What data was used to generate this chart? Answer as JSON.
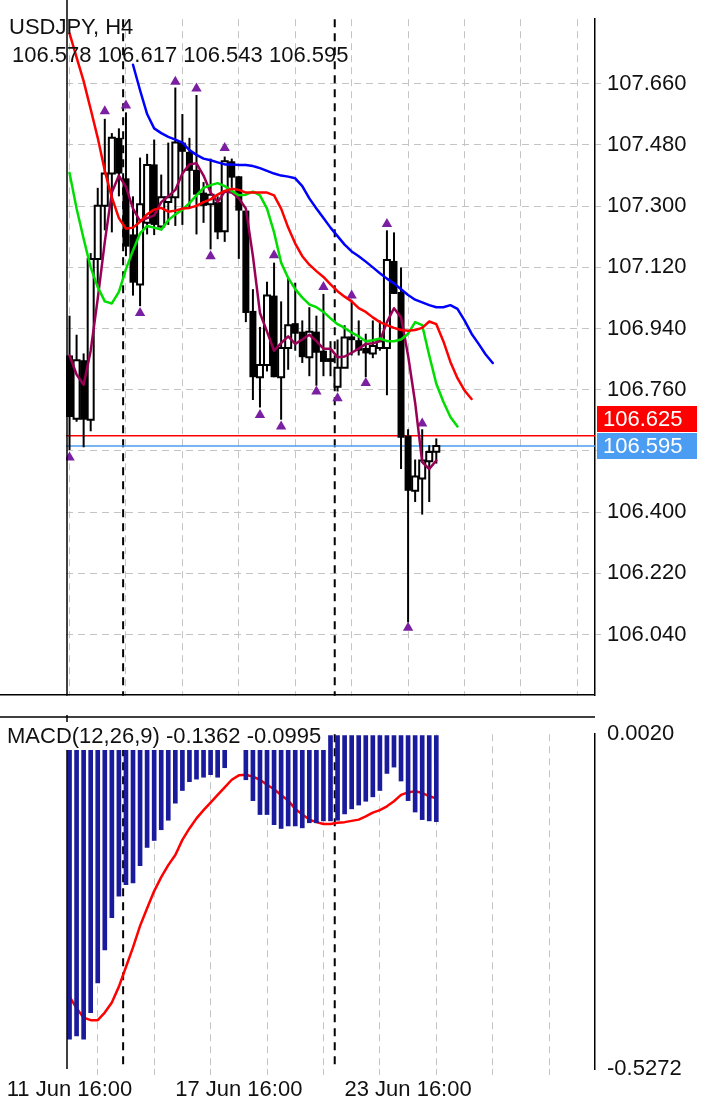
{
  "chart_data": [
    {
      "type": "candlestick",
      "title": "USDJPY, H4",
      "subtitle": "106.578 106.617 106.543 106.595",
      "categories": [
        null,
        null,
        null,
        null,
        null,
        null,
        null,
        null,
        null,
        null,
        null,
        null,
        null,
        null,
        null,
        null,
        null,
        null,
        null,
        null,
        null,
        null,
        null,
        null,
        null,
        null,
        null,
        null,
        null,
        null,
        null,
        null,
        null,
        null,
        null,
        null,
        null,
        null,
        null,
        null,
        null,
        null,
        null,
        null,
        null,
        null,
        null,
        null,
        null,
        null,
        null,
        null,
        null,
        null,
        null,
        null,
        null,
        null,
        null,
        null,
        null,
        null,
        null,
        null,
        null,
        null,
        null,
        null,
        null,
        null,
        null,
        null,
        null,
        null,
        null
      ],
      "ohlc": [
        [
          106.861,
          106.978,
          106.583,
          106.68
        ],
        [
          106.675,
          106.922,
          106.666,
          106.847
        ],
        [
          106.847,
          106.867,
          106.591,
          106.672
        ],
        [
          106.672,
          107.162,
          106.638,
          107.145
        ],
        [
          107.145,
          107.354,
          107.07,
          107.301
        ],
        [
          107.301,
          107.557,
          107.229,
          107.396
        ],
        [
          107.396,
          107.515,
          107.223,
          107.501
        ],
        [
          107.501,
          107.529,
          107.329,
          107.396
        ],
        [
          107.382,
          107.576,
          107.153,
          107.181
        ],
        [
          107.217,
          107.329,
          107.037,
          107.075
        ],
        [
          107.07,
          107.443,
          107.006,
          107.306
        ],
        [
          107.251,
          107.454,
          107.217,
          107.421
        ],
        [
          107.423,
          107.496,
          107.215,
          107.245
        ],
        [
          107.24,
          107.393,
          107.237,
          107.326
        ],
        [
          107.312,
          107.487,
          107.245,
          107.326
        ],
        [
          107.326,
          107.649,
          107.242,
          107.487
        ],
        [
          107.487,
          107.571,
          107.245,
          107.46
        ],
        [
          107.46,
          107.501,
          107.293,
          107.404
        ],
        [
          107.407,
          107.627,
          107.217,
          107.334
        ],
        [
          107.34,
          107.371,
          107.251,
          107.301
        ],
        [
          107.306,
          107.44,
          107.173,
          107.334
        ],
        [
          107.312,
          107.329,
          107.203,
          107.223
        ],
        [
          107.226,
          107.446,
          107.195,
          107.432
        ],
        [
          107.432,
          107.44,
          107.354,
          107.384
        ],
        [
          107.388,
          107.388,
          107.145,
          107.287
        ],
        [
          107.287,
          107.287,
          106.959,
          106.986
        ],
        [
          106.992,
          107.056,
          106.73,
          106.797
        ],
        [
          106.797,
          106.945,
          106.708,
          106.833
        ],
        [
          106.833,
          107.078,
          106.814,
          107.037
        ],
        [
          107.037,
          107.134,
          106.797,
          106.797
        ],
        [
          106.797,
          107.02,
          106.672,
          106.883
        ],
        [
          106.883,
          107.089,
          106.819,
          106.95
        ],
        [
          106.956,
          107.075,
          106.875,
          106.925
        ],
        [
          106.931,
          106.964,
          106.839,
          106.856
        ],
        [
          106.856,
          107.003,
          106.8,
          106.931
        ],
        [
          106.931,
          106.978,
          106.772,
          106.869
        ],
        [
          106.875,
          107.042,
          106.8,
          106.842
        ],
        [
          106.853,
          106.903,
          106.8,
          106.842
        ],
        [
          106.769,
          106.908,
          106.755,
          106.825
        ],
        [
          106.825,
          106.95,
          106.825,
          106.914
        ],
        [
          106.917,
          107.023,
          106.861,
          106.906
        ],
        [
          106.906,
          106.964,
          106.861,
          106.875
        ],
        [
          106.883,
          106.925,
          106.797,
          106.867
        ],
        [
          106.867,
          106.964,
          106.853,
          106.889
        ],
        [
          106.883,
          106.964,
          106.875,
          106.903
        ],
        [
          106.883,
          107.229,
          106.744,
          107.142
        ],
        [
          107.139,
          107.223,
          107.042,
          107.042
        ],
        [
          107.048,
          107.12,
          106.527,
          106.619
        ],
        [
          106.625,
          106.644,
          106.076,
          106.463
        ],
        [
          106.463,
          106.555,
          106.43,
          106.505
        ],
        [
          106.499,
          106.644,
          106.393,
          106.552
        ],
        [
          106.55,
          106.597,
          106.43,
          106.577
        ],
        [
          106.578,
          106.617,
          106.543,
          106.595
        ],
        null,
        null,
        null,
        null,
        null,
        null,
        null,
        null,
        null,
        null,
        null,
        null,
        null,
        null,
        null,
        null,
        null,
        null,
        null,
        null,
        null,
        null
      ],
      "series": [
        {
          "type": "line",
          "color": "#0000ff",
          "values": [
            null,
            null,
            null,
            null,
            null,
            null,
            null,
            null,
            null,
            107.716,
            107.641,
            107.571,
            107.529,
            107.515,
            107.504,
            107.496,
            107.487,
            107.465,
            107.451,
            107.44,
            107.435,
            107.429,
            107.423,
            107.423,
            107.421,
            107.421,
            107.418,
            107.412,
            107.404,
            107.396,
            107.39,
            107.387,
            107.382,
            107.359,
            107.323,
            107.293,
            107.265,
            107.237,
            107.212,
            107.187,
            107.167,
            107.153,
            107.137,
            107.12,
            107.103,
            107.087,
            107.073,
            107.056,
            107.039,
            107.025,
            107.017,
            107.009,
            107.003,
            107.003,
            107.009,
            106.998,
            106.964,
            106.925,
            106.895,
            106.864,
            106.839,
            null,
            null,
            null,
            null,
            null,
            null,
            null,
            null,
            null,
            null,
            null,
            null,
            null,
            null
          ]
        },
        {
          "type": "line",
          "color": "#ff0000",
          "values": [
            107.808,
            107.738,
            107.668,
            107.585,
            107.501,
            107.404,
            107.326,
            107.265,
            107.234,
            107.237,
            107.254,
            107.276,
            107.29,
            107.295,
            107.284,
            107.287,
            107.293,
            107.295,
            107.301,
            107.312,
            107.32,
            107.334,
            107.345,
            107.351,
            107.348,
            107.34,
            107.34,
            107.34,
            107.34,
            107.332,
            107.293,
            107.237,
            107.19,
            107.153,
            107.128,
            107.109,
            107.092,
            107.07,
            107.05,
            107.034,
            107.02,
            107.0,
            106.989,
            106.973,
            106.959,
            106.95,
            106.942,
            106.936,
            106.934,
            106.936,
            106.942,
            106.961,
            106.953,
            106.903,
            106.842,
            106.794,
            106.758,
            106.733,
            null,
            null,
            null,
            null,
            null,
            null,
            null,
            null,
            null,
            null,
            null,
            null,
            null,
            null,
            null,
            null,
            null
          ]
        },
        {
          "type": "line",
          "color": "#00dd00",
          "values": [
            107.398,
            107.293,
            107.204,
            107.12,
            107.062,
            107.02,
            107.014,
            107.048,
            107.115,
            107.17,
            107.22,
            107.242,
            107.237,
            107.231,
            107.259,
            107.276,
            107.29,
            107.309,
            107.332,
            107.354,
            107.362,
            107.368,
            107.359,
            107.345,
            107.332,
            107.334,
            107.343,
            107.332,
            107.293,
            107.223,
            107.134,
            107.089,
            107.056,
            107.031,
            107.011,
            107.003,
            106.989,
            106.97,
            106.953,
            106.942,
            106.928,
            106.917,
            106.903,
            106.906,
            106.911,
            106.903,
            106.903,
            106.908,
            106.925,
            106.959,
            106.95,
            106.861,
            106.778,
            106.725,
            106.68,
            106.652,
            null,
            null,
            null,
            null,
            null,
            null,
            null,
            null,
            null,
            null,
            null,
            null,
            null,
            null,
            null,
            null,
            null,
            null,
            null
          ]
        },
        {
          "type": "line",
          "color": "#990055",
          "values": [
            106.861,
            106.805,
            106.775,
            106.875,
            107.028,
            107.195,
            107.34,
            107.39,
            107.357,
            107.293,
            107.256,
            107.265,
            107.273,
            107.312,
            107.329,
            107.348,
            107.396,
            107.423,
            107.426,
            107.39,
            107.34,
            107.312,
            107.343,
            107.34,
            107.323,
            107.293,
            107.153,
            106.986,
            106.931,
            106.875,
            106.897,
            106.917,
            106.895,
            106.908,
            106.922,
            106.903,
            106.881,
            106.881,
            106.856,
            106.858,
            106.869,
            106.881,
            106.895,
            106.897,
            106.903,
            106.959,
            107.0,
            106.973,
            106.861,
            106.722,
            106.547,
            106.527,
            106.552,
            null,
            null,
            null,
            null,
            null,
            null,
            null,
            null,
            null,
            null,
            null,
            null,
            null,
            null,
            null,
            null,
            null,
            null,
            null,
            null,
            null,
            null
          ]
        },
        {
          "type": "scatter",
          "color": "#7b1fa2",
          "marker": "triangle",
          "values": [
            null,
            null,
            null,
            null,
            null,
            107.579,
            null,
            null,
            107.596,
            null,
            null,
            null,
            null,
            null,
            null,
            107.666,
            null,
            null,
            107.646,
            null,
            null,
            null,
            107.471,
            null,
            null,
            null,
            null,
            null,
            null,
            107.156,
            null,
            null,
            null,
            null,
            null,
            null,
            107.062,
            null,
            null,
            null,
            107.037,
            null,
            null,
            null,
            null,
            107.248,
            null,
            null,
            null,
            null,
            106.661,
            null,
            null,
            null,
            null,
            null,
            null,
            null,
            null,
            null,
            null,
            null,
            null,
            null,
            null,
            null,
            null,
            null,
            null,
            null,
            null,
            null,
            null,
            null,
            null
          ]
        },
        {
          "type": "scatter",
          "color": "#7b1fa2",
          "marker": "triangle",
          "values": [
            106.561,
            null,
            null,
            null,
            null,
            null,
            null,
            null,
            null,
            null,
            106.986,
            null,
            null,
            null,
            null,
            null,
            null,
            null,
            null,
            null,
            107.153,
            null,
            null,
            null,
            null,
            null,
            null,
            106.686,
            null,
            null,
            106.652,
            null,
            null,
            null,
            null,
            106.755,
            null,
            null,
            106.735,
            null,
            null,
            null,
            106.78,
            null,
            null,
            null,
            null,
            null,
            106.06,
            null,
            null,
            null,
            null,
            null,
            null,
            null,
            null,
            null,
            null,
            null,
            null,
            null,
            null,
            null,
            null,
            null,
            null,
            null,
            null,
            null,
            null,
            null,
            null,
            null,
            null
          ]
        }
      ],
      "ylim": [
        105.86,
        107.85
      ],
      "yticks": [
        {
          "value": 106.04,
          "label": "106.040"
        },
        {
          "value": 106.22,
          "label": "106.220"
        },
        {
          "value": 106.4,
          "label": "106.400"
        },
        {
          "value": 106.58,
          "label": null
        },
        {
          "value": 106.76,
          "label": "106.760"
        },
        {
          "value": 106.94,
          "label": "106.940"
        },
        {
          "value": 107.12,
          "label": "107.120"
        },
        {
          "value": 107.3,
          "label": "107.300"
        },
        {
          "value": 107.48,
          "label": "107.480"
        },
        {
          "value": 107.66,
          "label": "107.660"
        }
      ],
      "ref_lines": [
        {
          "axis": "y",
          "value": 106.625,
          "label": "106.625",
          "color": "#ff0000"
        },
        {
          "axis": "y",
          "value": 106.595,
          "label": "106.595",
          "color": "#4a9df2"
        }
      ],
      "grid": true,
      "legend": false,
      "tick_labels": "y"
    },
    {
      "type": "bar",
      "title": "MACD(12,26,9) -0.1362 -0.0995",
      "categories": [
        "11 Jun 16:00",
        null,
        null,
        null,
        null,
        null,
        null,
        null,
        null,
        null,
        null,
        null,
        null,
        null,
        null,
        null,
        null,
        null,
        null,
        null,
        null,
        null,
        null,
        null,
        "17 Jun 16:00",
        null,
        null,
        null,
        null,
        null,
        null,
        null,
        null,
        null,
        null,
        null,
        null,
        null,
        null,
        null,
        null,
        null,
        null,
        null,
        null,
        null,
        null,
        null,
        "23 Jun 16:00",
        null,
        null,
        null,
        null,
        null,
        null,
        null,
        null,
        null,
        null,
        null,
        null,
        null,
        null,
        null,
        null,
        null,
        null,
        null,
        null,
        null,
        null,
        null,
        null,
        null,
        null
      ],
      "series": [
        {
          "type": "bar",
          "color": "#1a1a9c",
          "values": [
            -0.48,
            -0.475,
            -0.48,
            -0.438,
            -0.391,
            -0.339,
            -0.288,
            -0.254,
            -0.236,
            -0.233,
            -0.206,
            -0.177,
            -0.166,
            -0.149,
            -0.134,
            -0.107,
            -0.087,
            -0.073,
            -0.069,
            -0.066,
            -0.062,
            -0.066,
            -0.051,
            null,
            null,
            -0.07,
            -0.103,
            -0.125,
            -0.125,
            -0.141,
            -0.147,
            -0.143,
            -0.143,
            -0.146,
            -0.138,
            -0.138,
            -0.135,
            -0.135,
            -0.134,
            -0.124,
            -0.116,
            -0.11,
            -0.104,
            -0.097,
            -0.087,
            -0.06,
            -0.05,
            -0.072,
            -0.103,
            -0.121,
            -0.133,
            -0.135,
            -0.1362,
            null,
            null,
            null,
            null,
            null,
            null,
            null,
            null,
            null,
            null,
            null,
            null,
            null,
            null,
            null,
            null,
            null,
            null,
            null,
            null,
            null,
            null
          ]
        },
        {
          "type": "line",
          "color": "#ff0000",
          "values": [
            -0.413,
            -0.431,
            -0.446,
            -0.45,
            -0.45,
            -0.438,
            -0.422,
            -0.397,
            -0.366,
            -0.335,
            -0.301,
            -0.273,
            -0.246,
            -0.224,
            -0.205,
            -0.189,
            -0.165,
            -0.147,
            -0.131,
            -0.118,
            -0.106,
            -0.094,
            -0.082,
            -0.07,
            -0.063,
            -0.062,
            -0.065,
            -0.07,
            -0.078,
            -0.085,
            -0.094,
            -0.103,
            -0.116,
            -0.125,
            -0.133,
            -0.137,
            -0.14,
            -0.14,
            -0.138,
            -0.137,
            -0.135,
            -0.133,
            -0.128,
            -0.122,
            -0.118,
            -0.112,
            -0.104,
            -0.094,
            -0.09,
            -0.088,
            -0.091,
            -0.096,
            -0.0995,
            null,
            null,
            null,
            null,
            null,
            null,
            null,
            null,
            null,
            null,
            null,
            null,
            null,
            null,
            null,
            null,
            null,
            null,
            null,
            null,
            null,
            null
          ]
        }
      ],
      "ylim": [
        -0.5272,
        0.002
      ],
      "yticks": [
        {
          "value": -0.5272,
          "label": "-0.5272"
        },
        {
          "value": 0.002,
          "label": "0.0020"
        }
      ],
      "grid": "x",
      "legend": false
    }
  ]
}
